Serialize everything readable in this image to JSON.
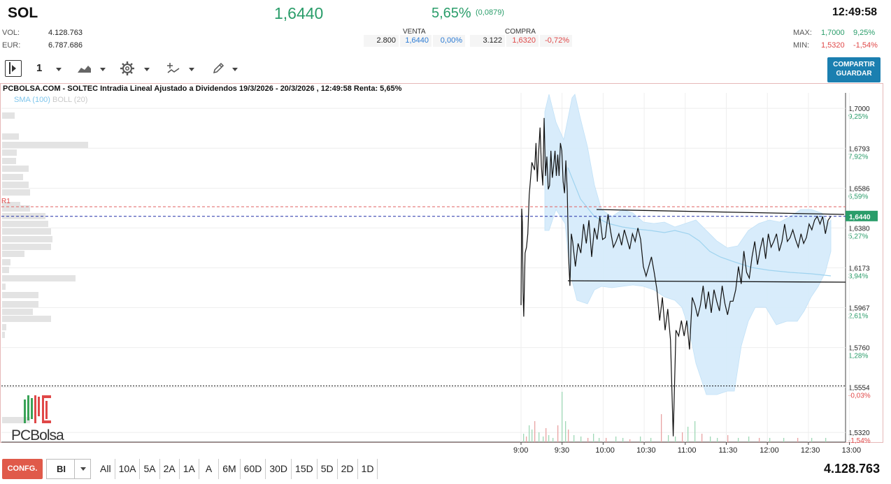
{
  "header": {
    "ticker": "SOL",
    "last_price": "1,6440",
    "change_pct": "5,65%",
    "change_abs": "(0,0879)",
    "time": "12:49:58"
  },
  "stats": {
    "vol_label": "VOL:",
    "vol_value": "4.128.763",
    "eur_label": "EUR:",
    "eur_value": "6.787.686"
  },
  "order_book": {
    "sell_label": "VENTA",
    "buy_label": "COMPRA",
    "sell_qty": "2.800",
    "sell_price": "1,6440",
    "sell_pct": "0,00%",
    "buy_qty": "3.122",
    "buy_price": "1,6320",
    "buy_pct": "-0,72%"
  },
  "highlow": {
    "max_label": "MAX:",
    "max_value": "1,7000",
    "max_pct": "9,25%",
    "min_label": "MIN:",
    "min_value": "1,5320",
    "min_pct": "-1,54%"
  },
  "toolbar": {
    "period_value": "1",
    "share_line1": "COMPARTIR",
    "share_line2": "GUARDAR"
  },
  "chart_title": "PCBOLSA.COM - SOLTEC Intradia Lineal Ajustado a Dividendos 19/3/2026 - 20/3/2026 , 12:49:58 Renta: 5,65%",
  "indicators": {
    "sma": "SMA (100)",
    "boll": "BOLL (20)"
  },
  "logo_text": "PCBolsa",
  "r1_label": "R1",
  "bottom": {
    "config_label": "CONFG.",
    "bi_label": "BI",
    "periods": [
      "All",
      "10A",
      "5A",
      "2A",
      "1A",
      "A",
      "6M",
      "60D",
      "30D",
      "15D",
      "5D",
      "2D",
      "1D"
    ],
    "total_volume": "4.128.763"
  },
  "colors": {
    "up": "#2a9d6a",
    "down": "#e04848",
    "boll_fill": "#d6ecfb",
    "sma": "#9fd3ef",
    "price_line": "#111111",
    "last_marker": "#2a9d6a"
  },
  "chart_data": {
    "type": "line",
    "title": "PCBOLSA.COM - SOLTEC Intradia Lineal Ajustado a Dividendos 19/3/2026 - 20/3/2026 , 12:49:58 Renta: 5,65%",
    "ylim": [
      1.527,
      1.708
    ],
    "y_ticks": [
      {
        "price": 1.7,
        "label": "1,7000",
        "pct": "9,25%"
      },
      {
        "price": 1.6793,
        "label": "1,6793",
        "pct": "7,92%"
      },
      {
        "price": 1.6586,
        "label": "1,6586",
        "pct": "6,59%"
      },
      {
        "price": 1.638,
        "label": "1,6380",
        "pct": "5,27%"
      },
      {
        "price": 1.6173,
        "label": "1,6173",
        "pct": "3,94%"
      },
      {
        "price": 1.5967,
        "label": "1,5967",
        "pct": "2,61%"
      },
      {
        "price": 1.576,
        "label": "1,5760",
        "pct": "1,28%"
      },
      {
        "price": 1.5554,
        "label": "1,5554",
        "pct": "-0,03%"
      },
      {
        "price": 1.532,
        "label": "1,5320",
        "pct": "-1,54%"
      }
    ],
    "x_ticks": [
      "9:00",
      "9:30",
      "10:00",
      "10:30",
      "11:00",
      "11:30",
      "12:00",
      "12:30",
      "13:00"
    ],
    "last_marker": "1,6440",
    "r1_level": 1.649,
    "last_level": 1.644,
    "prev_close_level": 1.5561,
    "price": {
      "t": [
        0.0,
        0.5,
        1.0,
        1.5,
        2.0,
        2.5,
        3,
        4,
        5,
        6,
        8,
        10,
        11,
        12,
        13,
        14,
        15,
        16,
        17,
        18,
        19,
        20,
        21,
        22,
        23,
        24,
        25,
        26,
        27,
        28,
        29,
        30,
        31,
        32,
        33,
        34,
        35,
        36,
        37,
        38,
        40,
        42,
        44,
        46,
        48,
        50,
        52,
        54,
        56,
        58,
        60,
        62,
        64,
        66,
        68,
        70,
        72,
        74,
        76,
        78,
        80,
        82,
        84,
        86,
        88,
        90,
        92,
        94,
        96,
        98,
        100,
        102,
        104,
        106,
        108,
        110,
        112,
        114,
        116,
        118,
        120,
        122,
        124,
        126,
        128,
        130,
        132,
        134,
        136,
        138,
        140,
        142,
        144,
        146,
        148,
        150,
        152,
        154,
        156,
        158,
        160,
        162,
        164,
        166,
        168,
        170,
        172,
        174,
        176,
        178,
        180,
        182,
        184,
        186,
        188,
        190,
        192,
        194,
        196,
        198,
        200,
        202,
        204,
        206,
        208,
        210,
        212,
        214,
        216,
        218,
        220,
        222,
        224,
        226,
        228
      ],
      "v": [
        1.598,
        1.648,
        1.641,
        1.605,
        1.592,
        1.61,
        1.625,
        1.628,
        1.635,
        1.655,
        1.672,
        1.668,
        1.682,
        1.662,
        1.678,
        1.69,
        1.67,
        1.66,
        1.695,
        1.665,
        1.675,
        1.658,
        1.66,
        1.678,
        1.664,
        1.67,
        1.678,
        1.665,
        1.676,
        1.665,
        1.682,
        1.678,
        1.662,
        1.656,
        1.673,
        1.657,
        1.623,
        1.608,
        1.635,
        1.631,
        1.618,
        1.63,
        1.625,
        1.64,
        1.63,
        1.642,
        1.623,
        1.638,
        1.632,
        1.644,
        1.632,
        1.633,
        1.645,
        1.636,
        1.628,
        1.631,
        1.635,
        1.629,
        1.637,
        1.632,
        1.627,
        1.635,
        1.631,
        1.638,
        1.632,
        1.618,
        1.613,
        1.618,
        1.623,
        1.615,
        1.606,
        1.59,
        1.602,
        1.585,
        1.596,
        1.58,
        1.53,
        1.585,
        1.582,
        1.59,
        1.582,
        1.59,
        1.575,
        1.602,
        1.598,
        1.592,
        1.598,
        1.608,
        1.596,
        1.605,
        1.594,
        1.606,
        1.6,
        1.595,
        1.608,
        1.599,
        1.593,
        1.6,
        1.6,
        1.606,
        1.618,
        1.609,
        1.626,
        1.615,
        1.612,
        1.623,
        1.631,
        1.619,
        1.627,
        1.633,
        1.622,
        1.635,
        1.628,
        1.631,
        1.635,
        1.626,
        1.631,
        1.64,
        1.631,
        1.633,
        1.637,
        1.632,
        1.628,
        1.635,
        1.63,
        1.633,
        1.64,
        1.637,
        1.642,
        1.644,
        1.64,
        1.644,
        1.635,
        1.642,
        1.644
      ]
    }
  }
}
